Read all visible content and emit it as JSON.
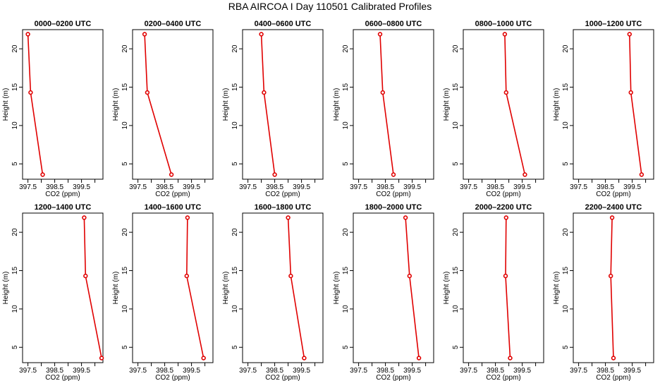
{
  "figure": {
    "title": "RBA AIRCOA I  Day 110501  Calibrated Profiles",
    "colors": {
      "line": "#e00000",
      "marker_fill": "#ffffff",
      "axes": "#000000"
    }
  },
  "chart_data": [
    {
      "type": "line",
      "title": "0000–0200 UTC",
      "xlabel": "CO2 (ppm)",
      "ylabel": "Height (m)",
      "xlim": [
        397.3,
        400.3
      ],
      "ylim": [
        3.0,
        22.5
      ],
      "xticks": [
        "397.5",
        "398.5",
        "399.5"
      ],
      "yticks": [
        "5",
        "10",
        "15",
        "20"
      ],
      "series": [
        {
          "x": [
            397.5,
            397.6,
            398.05
          ],
          "y": [
            21.9,
            14.3,
            3.6
          ]
        }
      ]
    },
    {
      "type": "line",
      "title": "0200–0400 UTC",
      "xlabel": "CO2 (ppm)",
      "ylabel": "Height (m)",
      "xlim": [
        397.3,
        400.3
      ],
      "ylim": [
        3.0,
        22.5
      ],
      "xticks": [
        "397.5",
        "398.5",
        "399.5"
      ],
      "yticks": [
        "5",
        "10",
        "15",
        "20"
      ],
      "series": [
        {
          "x": [
            397.75,
            397.85,
            398.75
          ],
          "y": [
            21.9,
            14.3,
            3.6
          ]
        }
      ]
    },
    {
      "type": "line",
      "title": "0400–0600 UTC",
      "xlabel": "CO2 (ppm)",
      "ylabel": "Height (m)",
      "xlim": [
        397.3,
        400.3
      ],
      "ylim": [
        3.0,
        22.5
      ],
      "xticks": [
        "397.5",
        "398.5",
        "399.5"
      ],
      "yticks": [
        "5",
        "10",
        "15",
        "20"
      ],
      "series": [
        {
          "x": [
            398.0,
            398.1,
            398.5
          ],
          "y": [
            21.9,
            14.3,
            3.6
          ]
        }
      ]
    },
    {
      "type": "line",
      "title": "0600–0800 UTC",
      "xlabel": "CO2 (ppm)",
      "ylabel": "Height (m)",
      "xlim": [
        397.3,
        400.3
      ],
      "ylim": [
        3.0,
        22.5
      ],
      "xticks": [
        "397.5",
        "398.5",
        "399.5"
      ],
      "yticks": [
        "5",
        "10",
        "15",
        "20"
      ],
      "series": [
        {
          "x": [
            398.3,
            398.4,
            398.8
          ],
          "y": [
            21.9,
            14.3,
            3.6
          ]
        }
      ]
    },
    {
      "type": "line",
      "title": "0800–1000 UTC",
      "xlabel": "CO2 (ppm)",
      "ylabel": "Height (m)",
      "xlim": [
        397.3,
        400.3
      ],
      "ylim": [
        3.0,
        22.5
      ],
      "xticks": [
        "397.5",
        "398.5",
        "399.5"
      ],
      "yticks": [
        "5",
        "10",
        "15",
        "20"
      ],
      "series": [
        {
          "x": [
            398.85,
            398.9,
            399.6
          ],
          "y": [
            21.9,
            14.3,
            3.6
          ]
        }
      ]
    },
    {
      "type": "line",
      "title": "1000–1200 UTC",
      "xlabel": "CO2 (ppm)",
      "ylabel": "Height (m)",
      "xlim": [
        397.3,
        400.3
      ],
      "ylim": [
        3.0,
        22.5
      ],
      "xticks": [
        "397.5",
        "398.5",
        "399.5"
      ],
      "yticks": [
        "5",
        "10",
        "15",
        "20"
      ],
      "series": [
        {
          "x": [
            399.4,
            399.45,
            399.85
          ],
          "y": [
            21.9,
            14.3,
            3.6
          ]
        }
      ]
    },
    {
      "type": "line",
      "title": "1200–1400 UTC",
      "xlabel": "CO2 (ppm)",
      "ylabel": "Height (m)",
      "xlim": [
        397.3,
        400.3
      ],
      "ylim": [
        3.0,
        22.5
      ],
      "xticks": [
        "397.5",
        "398.5",
        "399.5"
      ],
      "yticks": [
        "5",
        "10",
        "15",
        "20"
      ],
      "series": [
        {
          "x": [
            399.6,
            399.65,
            400.25
          ],
          "y": [
            21.9,
            14.3,
            3.6
          ]
        }
      ]
    },
    {
      "type": "line",
      "title": "1400–1600 UTC",
      "xlabel": "CO2 (ppm)",
      "ylabel": "Height (m)",
      "xlim": [
        397.3,
        400.3
      ],
      "ylim": [
        3.0,
        22.5
      ],
      "xticks": [
        "397.5",
        "398.5",
        "399.5"
      ],
      "yticks": [
        "5",
        "10",
        "15",
        "20"
      ],
      "series": [
        {
          "x": [
            399.35,
            399.32,
            399.95
          ],
          "y": [
            21.9,
            14.3,
            3.6
          ]
        }
      ]
    },
    {
      "type": "line",
      "title": "1600–1800 UTC",
      "xlabel": "CO2 (ppm)",
      "ylabel": "Height (m)",
      "xlim": [
        397.3,
        400.3
      ],
      "ylim": [
        3.0,
        22.5
      ],
      "xticks": [
        "397.5",
        "398.5",
        "399.5"
      ],
      "yticks": [
        "5",
        "10",
        "15",
        "20"
      ],
      "series": [
        {
          "x": [
            399.0,
            399.1,
            399.6
          ],
          "y": [
            21.9,
            14.3,
            3.6
          ]
        }
      ]
    },
    {
      "type": "line",
      "title": "1800–2000 UTC",
      "xlabel": "CO2 (ppm)",
      "ylabel": "Height (m)",
      "xlim": [
        397.3,
        400.3
      ],
      "ylim": [
        3.0,
        22.5
      ],
      "xticks": [
        "397.5",
        "398.5",
        "399.5"
      ],
      "yticks": [
        "5",
        "10",
        "15",
        "20"
      ],
      "series": [
        {
          "x": [
            399.25,
            399.4,
            399.75
          ],
          "y": [
            21.9,
            14.3,
            3.6
          ]
        }
      ]
    },
    {
      "type": "line",
      "title": "2000–2200 UTC",
      "xlabel": "CO2 (ppm)",
      "ylabel": "Height (m)",
      "xlim": [
        397.3,
        400.3
      ],
      "ylim": [
        3.0,
        22.5
      ],
      "xticks": [
        "397.5",
        "398.5",
        "399.5"
      ],
      "yticks": [
        "5",
        "10",
        "15",
        "20"
      ],
      "series": [
        {
          "x": [
            398.9,
            398.88,
            399.05
          ],
          "y": [
            21.9,
            14.3,
            3.6
          ]
        }
      ]
    },
    {
      "type": "line",
      "title": "2200–2400 UTC",
      "xlabel": "CO2 (ppm)",
      "ylabel": "Height (m)",
      "xlim": [
        397.3,
        400.3
      ],
      "ylim": [
        3.0,
        22.5
      ],
      "xticks": [
        "397.5",
        "398.5",
        "399.5"
      ],
      "yticks": [
        "5",
        "10",
        "15",
        "20"
      ],
      "series": [
        {
          "x": [
            398.75,
            398.7,
            398.8
          ],
          "y": [
            21.9,
            14.3,
            3.6
          ]
        }
      ]
    }
  ]
}
